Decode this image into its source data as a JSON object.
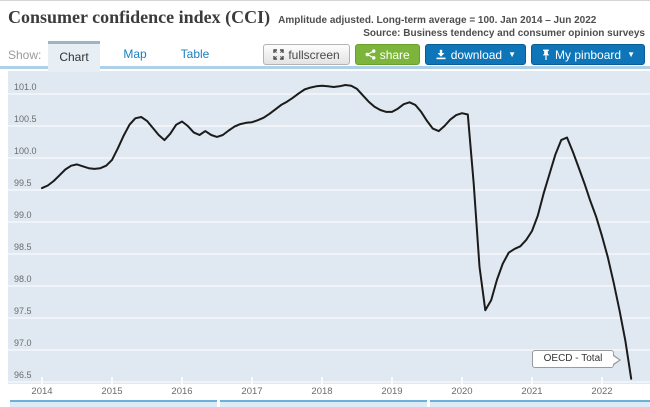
{
  "header": {
    "title": "Consumer confidence index (CCI)",
    "subtitle": "Amplitude adjusted. Long-term average = 100. Jan 2014 – Jun 2022",
    "source": "Source: Business tendency and consumer opinion surveys"
  },
  "toolbar": {
    "show_label": "Show:",
    "tabs": [
      {
        "label": "Chart",
        "active": true
      },
      {
        "label": "Map",
        "active": false
      },
      {
        "label": "Table",
        "active": false
      }
    ],
    "buttons": {
      "fullscreen_label": "fullscreen",
      "share_label": "share",
      "download_label": "download",
      "pinboard_label": "My pinboard",
      "caret": "▼"
    }
  },
  "tooltip": {
    "label": "OECD - Total"
  },
  "colors": {
    "accent_blue": "#0e76b8",
    "green": "#7db53c",
    "tab_link_blue": "#1b7fc0",
    "plot_bg": "#e0e9f1",
    "gridline": "#ffffff",
    "line": "#1b1b1b",
    "navigator_border": "#6fb0d8",
    "separator_blue": "#aed0e8"
  },
  "chart_data": {
    "type": "line",
    "title": "Consumer confidence index (CCI)",
    "subtitle": "Amplitude adjusted. Long-term average = 100. Jan 2014 - Jun 2022",
    "frequency": "monthly",
    "x_start": "2014-01",
    "x_end": "2022-06",
    "x_tick_labels": [
      "2014",
      "2015",
      "2016",
      "2017",
      "2018",
      "2019",
      "2020",
      "2021",
      "2022"
    ],
    "y_tick_labels": [
      "101.0",
      "100.5",
      "100.0",
      "99.5",
      "99.0",
      "98.5",
      "98.0",
      "97.5",
      "97.0",
      "96.5"
    ],
    "ylim": [
      96.45,
      101.35
    ],
    "grid": true,
    "legend_position": "line-end-label",
    "series": [
      {
        "name": "OECD - Total",
        "values": [
          99.53,
          99.57,
          99.64,
          99.73,
          99.82,
          99.88,
          99.9,
          99.87,
          99.84,
          99.83,
          99.84,
          99.88,
          99.97,
          100.15,
          100.35,
          100.52,
          100.62,
          100.64,
          100.58,
          100.47,
          100.36,
          100.28,
          100.38,
          100.52,
          100.57,
          100.5,
          100.4,
          100.36,
          100.42,
          100.36,
          100.33,
          100.36,
          100.43,
          100.49,
          100.53,
          100.55,
          100.56,
          100.59,
          100.63,
          100.69,
          100.76,
          100.83,
          100.88,
          100.94,
          101.01,
          101.07,
          101.1,
          101.12,
          101.13,
          101.12,
          101.11,
          101.12,
          101.14,
          101.13,
          101.08,
          100.98,
          100.88,
          100.8,
          100.75,
          100.72,
          100.72,
          100.77,
          100.84,
          100.87,
          100.83,
          100.72,
          100.58,
          100.46,
          100.42,
          100.5,
          100.6,
          100.67,
          100.7,
          100.68,
          99.6,
          98.3,
          97.62,
          97.78,
          98.1,
          98.35,
          98.52,
          98.58,
          98.62,
          98.72,
          98.86,
          99.1,
          99.45,
          99.75,
          100.05,
          100.28,
          100.32,
          100.1,
          99.85,
          99.6,
          99.33,
          99.08,
          98.78,
          98.45,
          98.05,
          97.62,
          97.15,
          96.55
        ]
      }
    ]
  }
}
